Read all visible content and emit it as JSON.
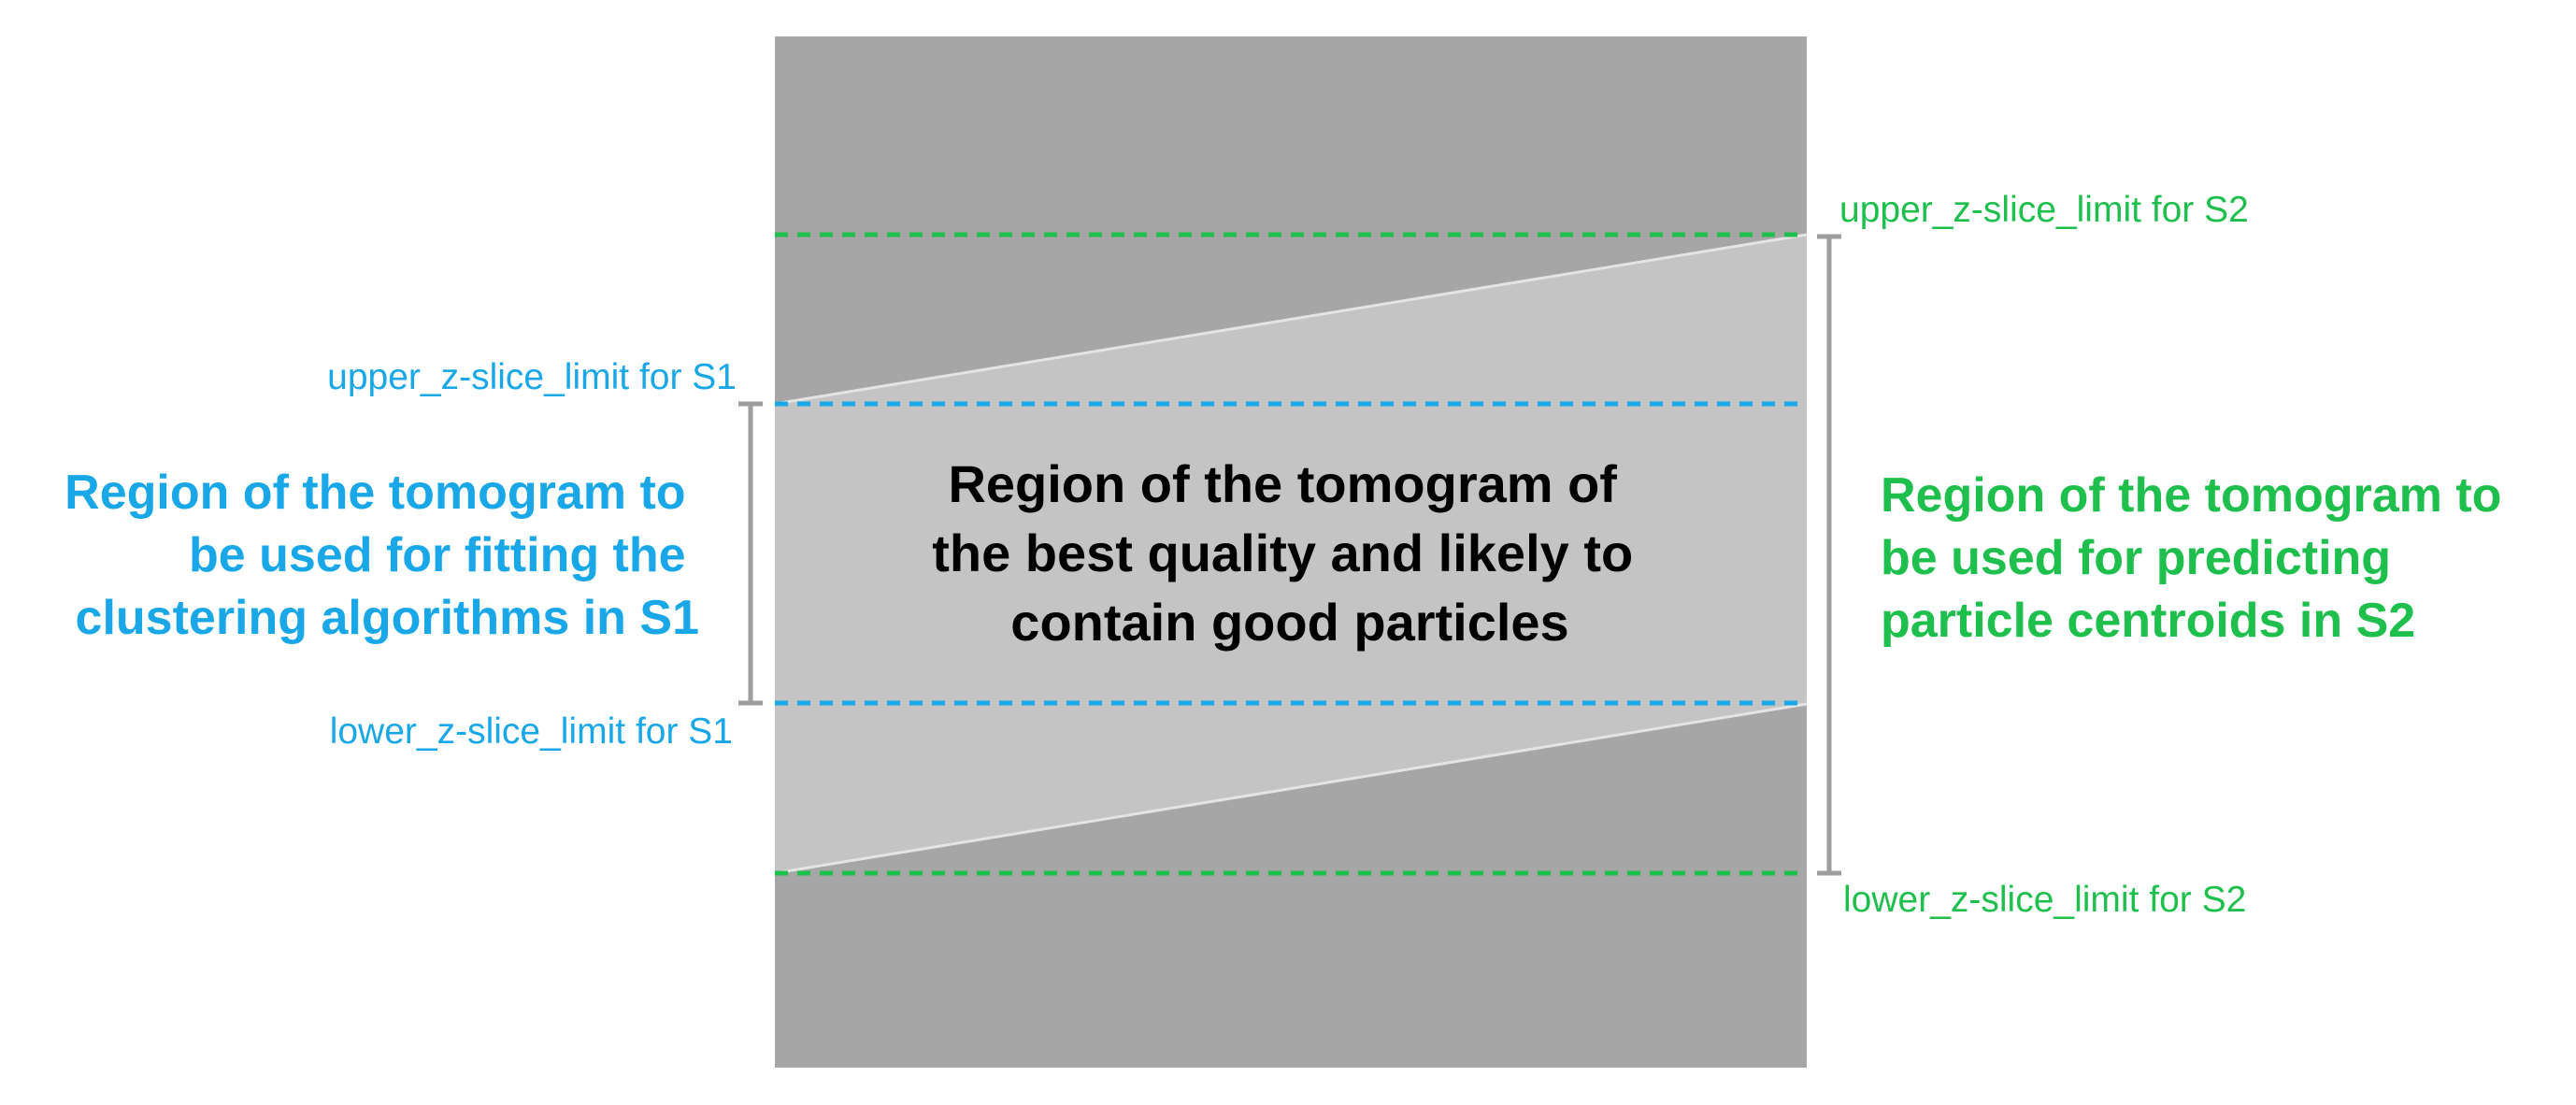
{
  "colors": {
    "s1": "#1aa7e8",
    "s2": "#1fbf4d",
    "tomogram_dark": "#a6a6a6",
    "tomogram_light": "#c4c4c4",
    "bracket": "#9e9e9e",
    "center_text": "#000000"
  },
  "labels": {
    "upper_s1": "upper_z-slice_limit for S1",
    "lower_s1": "lower_z-slice_limit for S1",
    "upper_s2": "upper_z-slice_limit for S2",
    "lower_s2": "lower_z-slice_limit for S2"
  },
  "regions": {
    "s1_lines": [
      "Region of the tomogram to",
      "be used for fitting the",
      "clustering algorithms in S1"
    ],
    "s2_lines": [
      "Region of the tomogram to",
      "be used for predicting",
      "particle centroids in S2"
    ],
    "center_lines": [
      "Region of the tomogram of",
      "the best quality and likely to",
      "contain good particles"
    ]
  }
}
